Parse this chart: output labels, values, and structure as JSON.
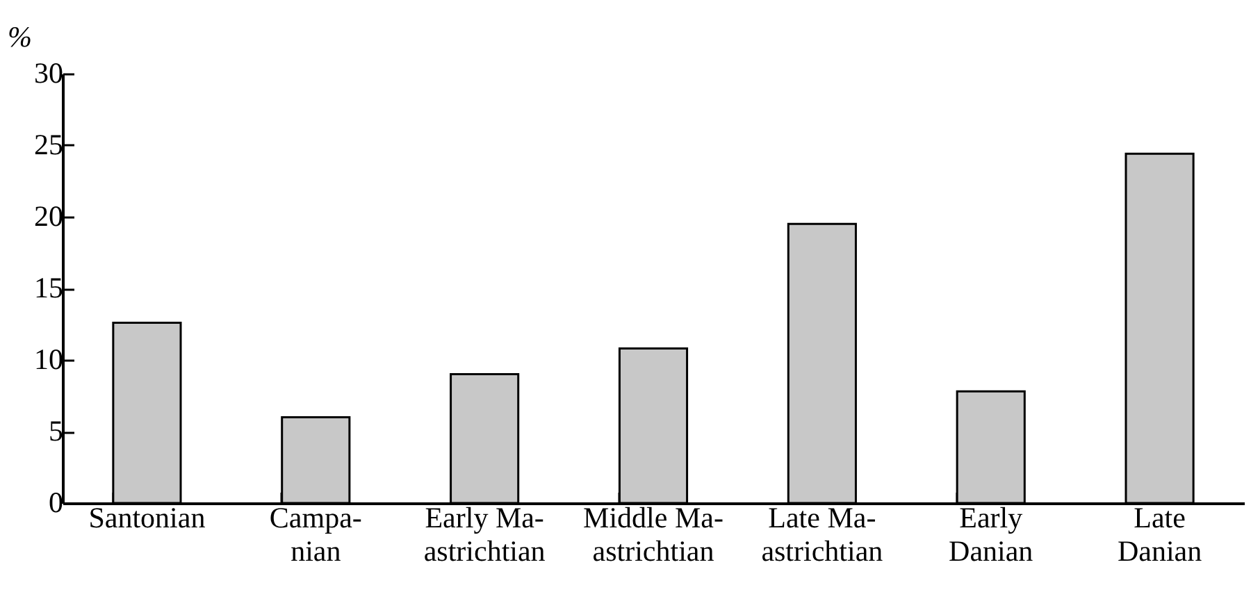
{
  "chart_data": {
    "type": "bar",
    "ylabel": "%",
    "categories": [
      "Santonian",
      "Campa-\nnian",
      "Early Ma-\nastrichtian",
      "Middle Ma-\nastrichtian",
      "Late Ma-\nastrichtian",
      "Early\nDanian",
      "Late\nDanian"
    ],
    "values": [
      12.6,
      6.0,
      9.0,
      10.8,
      19.5,
      7.8,
      24.4
    ],
    "color": "#c8c8c8",
    "ylim": [
      0,
      30
    ],
    "yticks": [
      0,
      5,
      10,
      15,
      20,
      25,
      30
    ]
  }
}
